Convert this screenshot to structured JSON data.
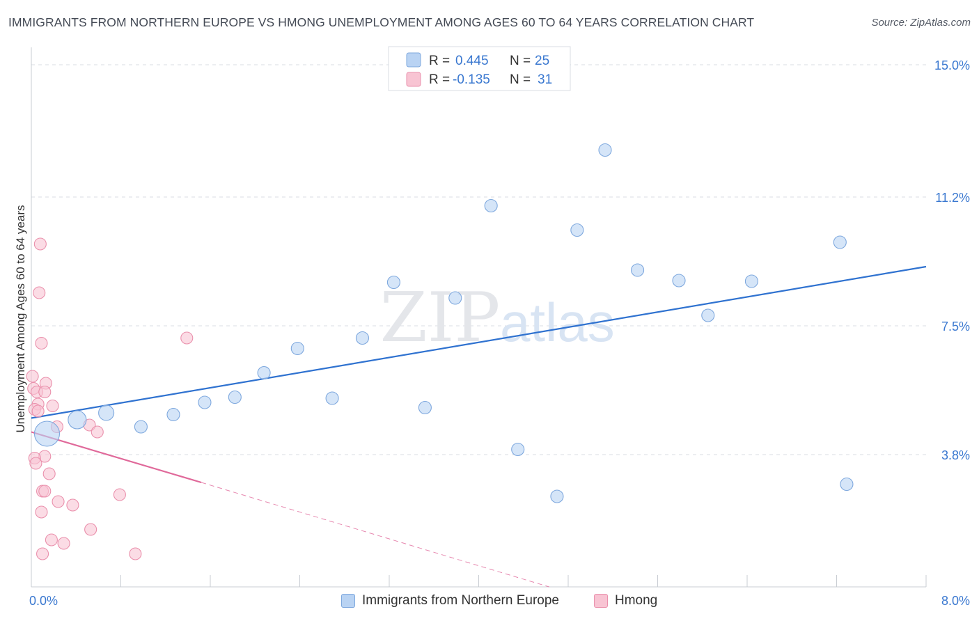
{
  "header": {
    "title": "IMMIGRANTS FROM NORTHERN EUROPE VS HMONG UNEMPLOYMENT AMONG AGES 60 TO 64 YEARS CORRELATION CHART",
    "source": "Source: ZipAtlas.com"
  },
  "watermark": {
    "zip": "ZIP",
    "atlas": "atlas"
  },
  "colors": {
    "blue_fill": "#b9d3f3",
    "blue_stroke": "#7ea8de",
    "blue_line": "#2f72d0",
    "pink_fill": "#f8c4d3",
    "pink_stroke": "#ea90ac",
    "pink_line": "#e0699a",
    "tick_label": "#3a78d0",
    "grid": "#d9dde3"
  },
  "legend_top": {
    "rows": [
      {
        "r_label": "R =",
        "r_value": "0.445",
        "n_label": "N =",
        "n_value": "25"
      },
      {
        "r_label": "R =",
        "r_value": "-0.135",
        "n_label": "N =",
        "n_value": "31"
      }
    ]
  },
  "legend_bottom": {
    "items": [
      {
        "label": "Immigrants from Northern Europe"
      },
      {
        "label": "Hmong"
      }
    ]
  },
  "chart_data": {
    "type": "scatter",
    "title": "IMMIGRANTS FROM NORTHERN EUROPE VS HMONG UNEMPLOYMENT AMONG AGES 60 TO 64 YEARS CORRELATION CHART",
    "xlabel": "",
    "ylabel": "Unemployment Among Ages 60 to 64 years",
    "xlim": [
      0,
      8.0
    ],
    "ylim": [
      0,
      15.4
    ],
    "x_tick_labels": [
      {
        "value": 0,
        "label": "0.0%"
      },
      {
        "value": 8.0,
        "label": "8.0%"
      }
    ],
    "x_minor_ticks": [
      0.8,
      1.6,
      2.4,
      3.2,
      4.0,
      4.8,
      5.6,
      6.4,
      7.2,
      8.0
    ],
    "y_ticks": [
      {
        "value": 3.8,
        "label": "3.8%"
      },
      {
        "value": 7.5,
        "label": "7.5%"
      },
      {
        "value": 11.2,
        "label": "11.2%"
      },
      {
        "value": 15.0,
        "label": "15.0%"
      }
    ],
    "series": [
      {
        "name": "Immigrants from Northern Europe",
        "color": "blue",
        "R": 0.445,
        "N": 25,
        "points": [
          {
            "x": 0.14,
            "y": 4.4,
            "size": 18
          },
          {
            "x": 0.41,
            "y": 4.8,
            "size": 13
          },
          {
            "x": 0.67,
            "y": 5.0,
            "size": 11
          },
          {
            "x": 0.98,
            "y": 4.6,
            "size": 9
          },
          {
            "x": 1.27,
            "y": 4.95,
            "size": 9
          },
          {
            "x": 1.55,
            "y": 5.3,
            "size": 9
          },
          {
            "x": 1.82,
            "y": 5.45,
            "size": 9
          },
          {
            "x": 2.08,
            "y": 6.15,
            "size": 9
          },
          {
            "x": 2.38,
            "y": 6.85,
            "size": 9
          },
          {
            "x": 2.69,
            "y": 5.42,
            "size": 9
          },
          {
            "x": 2.96,
            "y": 7.15,
            "size": 9
          },
          {
            "x": 3.24,
            "y": 8.75,
            "size": 9
          },
          {
            "x": 3.52,
            "y": 5.15,
            "size": 9
          },
          {
            "x": 3.79,
            "y": 8.3,
            "size": 9
          },
          {
            "x": 4.11,
            "y": 10.95,
            "size": 9
          },
          {
            "x": 4.35,
            "y": 3.95,
            "size": 9
          },
          {
            "x": 4.7,
            "y": 2.6,
            "size": 9
          },
          {
            "x": 4.88,
            "y": 10.25,
            "size": 9
          },
          {
            "x": 5.13,
            "y": 12.55,
            "size": 9
          },
          {
            "x": 5.42,
            "y": 9.1,
            "size": 9
          },
          {
            "x": 5.79,
            "y": 8.8,
            "size": 9
          },
          {
            "x": 6.05,
            "y": 7.8,
            "size": 9
          },
          {
            "x": 6.44,
            "y": 8.78,
            "size": 9
          },
          {
            "x": 7.23,
            "y": 9.9,
            "size": 9
          },
          {
            "x": 7.29,
            "y": 2.95,
            "size": 9
          }
        ],
        "trend": {
          "x0": 0.0,
          "y0": 4.85,
          "x1": 8.0,
          "y1": 9.2,
          "dashed_to": null
        }
      },
      {
        "name": "Hmong",
        "color": "pink",
        "R": -0.135,
        "N": 31,
        "points": [
          {
            "x": 0.08,
            "y": 9.85
          },
          {
            "x": 0.07,
            "y": 8.45
          },
          {
            "x": 0.09,
            "y": 7.0
          },
          {
            "x": 1.39,
            "y": 7.15
          },
          {
            "x": 0.01,
            "y": 6.05
          },
          {
            "x": 0.13,
            "y": 5.85
          },
          {
            "x": 0.02,
            "y": 5.7
          },
          {
            "x": 0.05,
            "y": 5.6
          },
          {
            "x": 0.12,
            "y": 5.6
          },
          {
            "x": 0.06,
            "y": 5.25
          },
          {
            "x": 0.19,
            "y": 5.2
          },
          {
            "x": 0.03,
            "y": 5.1
          },
          {
            "x": 0.06,
            "y": 5.05
          },
          {
            "x": 0.23,
            "y": 4.6
          },
          {
            "x": 0.52,
            "y": 4.65
          },
          {
            "x": 0.59,
            "y": 4.45
          },
          {
            "x": 0.12,
            "y": 3.75
          },
          {
            "x": 0.03,
            "y": 3.7
          },
          {
            "x": 0.04,
            "y": 3.55
          },
          {
            "x": 0.16,
            "y": 3.25
          },
          {
            "x": 0.1,
            "y": 2.75
          },
          {
            "x": 0.12,
            "y": 2.75
          },
          {
            "x": 0.79,
            "y": 2.65
          },
          {
            "x": 0.24,
            "y": 2.45
          },
          {
            "x": 0.37,
            "y": 2.35
          },
          {
            "x": 0.09,
            "y": 2.15
          },
          {
            "x": 0.53,
            "y": 1.65
          },
          {
            "x": 0.18,
            "y": 1.35
          },
          {
            "x": 0.29,
            "y": 1.25
          },
          {
            "x": 0.1,
            "y": 0.95
          },
          {
            "x": 0.93,
            "y": 0.95
          }
        ],
        "trend": {
          "x0": 0.0,
          "y0": 4.45,
          "x1": 1.52,
          "y1": 3.0,
          "dashed_to": {
            "x": 4.63,
            "y": 0.0
          }
        }
      }
    ]
  }
}
